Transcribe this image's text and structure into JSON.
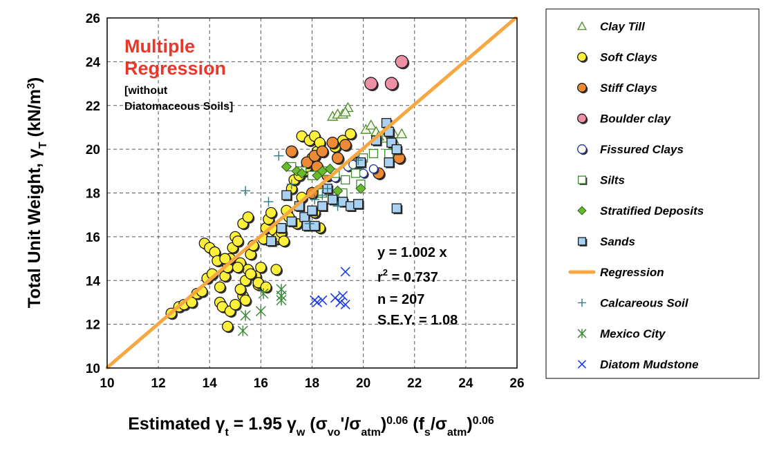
{
  "chart_data": {
    "type": "scatter",
    "title": "Multiple Regression",
    "subtitle_lines": [
      "[without",
      "Diatomaceous Soils]"
    ],
    "xlabel": {
      "parts": [
        {
          "t": "Estimated ",
          "s": ""
        },
        {
          "t": "γ",
          "s": ""
        },
        {
          "t": "t",
          "s": "sub"
        },
        {
          "t": " = 1.95 ",
          "s": ""
        },
        {
          "t": "γ",
          "s": ""
        },
        {
          "t": "w",
          "s": "sub"
        },
        {
          "t": " (",
          "s": ""
        },
        {
          "t": "σ",
          "s": ""
        },
        {
          "t": "vo",
          "s": "sub"
        },
        {
          "t": "'/",
          "s": ""
        },
        {
          "t": "σ",
          "s": ""
        },
        {
          "t": "atm",
          "s": "sub"
        },
        {
          "t": ")",
          "s": ""
        },
        {
          "t": "0.06",
          "s": "sup"
        },
        {
          "t": " (f",
          "s": ""
        },
        {
          "t": "s",
          "s": "sub"
        },
        {
          "t": "/",
          "s": ""
        },
        {
          "t": "σ",
          "s": ""
        },
        {
          "t": "atm",
          "s": "sub"
        },
        {
          "t": ")",
          "s": ""
        },
        {
          "t": "0.06",
          "s": "sup"
        }
      ]
    },
    "ylabel": {
      "parts": [
        {
          "t": "Total Unit Weight, ",
          "s": ""
        },
        {
          "t": "γ",
          "s": ""
        },
        {
          "t": "T",
          "s": "sub"
        },
        {
          "t": " (kN/m",
          "s": ""
        },
        {
          "t": "3",
          "s": "sup"
        },
        {
          "t": ")",
          "s": ""
        }
      ]
    },
    "xlim": [
      10,
      26
    ],
    "ylim": [
      10,
      26
    ],
    "xticks": [
      10,
      12,
      14,
      16,
      18,
      20,
      22,
      24,
      26
    ],
    "yticks": [
      10,
      12,
      14,
      16,
      18,
      20,
      22,
      24,
      26
    ],
    "grid": true,
    "legend_position": "right",
    "stats": {
      "equation": "y = 1.002 x",
      "r2_prefix": "r",
      "r2_sup": "2",
      "r2_suffix": " = 0.737",
      "n": "n = 207",
      "sey": "S.E.Y. = 1.08"
    },
    "regression": {
      "name": "Regression",
      "slope": 1.002,
      "color": "#f5a742"
    },
    "series": [
      {
        "name": "Clay Till",
        "marker": "triangle",
        "color": "#4e8a2a",
        "fill": "#f2f7e9",
        "points": [
          [
            18.8,
            21.5
          ],
          [
            19.0,
            21.6
          ],
          [
            19.2,
            21.6
          ],
          [
            19.4,
            21.9
          ],
          [
            19.3,
            21.7
          ],
          [
            20.1,
            20.9
          ],
          [
            20.3,
            21.1
          ],
          [
            20.5,
            20.8
          ],
          [
            20.8,
            20.5
          ],
          [
            21.0,
            20.9
          ],
          [
            21.2,
            20.7
          ],
          [
            21.5,
            20.7
          ],
          [
            20.6,
            20.6
          ],
          [
            21.3,
            20.2
          ]
        ]
      },
      {
        "name": "Soft Clays",
        "marker": "circle",
        "color": "#1a1a1a",
        "fill": "#fff13a",
        "points": [
          [
            12.5,
            12.5
          ],
          [
            12.8,
            12.8
          ],
          [
            13.0,
            12.9
          ],
          [
            13.3,
            13.0
          ],
          [
            13.5,
            13.4
          ],
          [
            13.7,
            13.5
          ],
          [
            13.9,
            14.1
          ],
          [
            14.1,
            14.3
          ],
          [
            13.8,
            15.7
          ],
          [
            14.0,
            15.5
          ],
          [
            14.2,
            15.3
          ],
          [
            14.3,
            14.9
          ],
          [
            14.4,
            13.0
          ],
          [
            14.5,
            12.8
          ],
          [
            14.6,
            14.2
          ],
          [
            14.7,
            14.6
          ],
          [
            14.8,
            15.0
          ],
          [
            14.9,
            15.5
          ],
          [
            15.0,
            16.0
          ],
          [
            15.1,
            15.8
          ],
          [
            15.2,
            14.8
          ],
          [
            15.3,
            13.3
          ],
          [
            15.4,
            13.1
          ],
          [
            15.5,
            14.5
          ],
          [
            15.6,
            15.2
          ],
          [
            15.7,
            15.6
          ],
          [
            15.8,
            14.2
          ],
          [
            15.9,
            13.8
          ],
          [
            16.0,
            14.6
          ],
          [
            16.1,
            15.9
          ],
          [
            16.2,
            16.4
          ],
          [
            16.3,
            16.8
          ],
          [
            16.4,
            17.1
          ],
          [
            16.5,
            16.3
          ],
          [
            16.6,
            15.9
          ],
          [
            16.7,
            16.0
          ],
          [
            14.7,
            11.9
          ],
          [
            14.8,
            12.6
          ],
          [
            15.0,
            12.9
          ],
          [
            15.2,
            13.6
          ],
          [
            15.4,
            14.0
          ],
          [
            15.6,
            14.3
          ],
          [
            15.9,
            13.9
          ],
          [
            16.2,
            13.7
          ],
          [
            16.6,
            14.5
          ],
          [
            16.8,
            16.2
          ],
          [
            16.9,
            15.8
          ],
          [
            17.0,
            17.2
          ],
          [
            17.1,
            16.9
          ],
          [
            17.2,
            18.2
          ],
          [
            17.3,
            18.6
          ],
          [
            17.5,
            18.8
          ],
          [
            17.7,
            19.0
          ],
          [
            17.8,
            19.2
          ],
          [
            18.0,
            19.6
          ],
          [
            18.2,
            19.9
          ],
          [
            17.6,
            20.6
          ],
          [
            17.9,
            20.4
          ],
          [
            18.1,
            20.6
          ],
          [
            18.3,
            20.3
          ],
          [
            17.4,
            16.6
          ],
          [
            17.6,
            17.8
          ],
          [
            18.1,
            17.1
          ],
          [
            18.3,
            16.4
          ],
          [
            19.2,
            20.4
          ],
          [
            19.5,
            20.7
          ],
          [
            18.9,
            20.1
          ],
          [
            15.3,
            16.6
          ],
          [
            15.5,
            16.9
          ],
          [
            14.6,
            15.0
          ],
          [
            14.4,
            13.7
          ],
          [
            15.1,
            14.6
          ]
        ]
      },
      {
        "name": "Stiff Clays",
        "marker": "circle",
        "color": "#1a1a1a",
        "fill": "#ec8a35",
        "r": 8,
        "points": [
          [
            17.8,
            19.4
          ],
          [
            18.1,
            19.7
          ],
          [
            18.4,
            19.9
          ],
          [
            18.8,
            20.3
          ],
          [
            19.3,
            20.2
          ],
          [
            18.2,
            19.2
          ],
          [
            18.6,
            18.8
          ],
          [
            18.3,
            18.1
          ],
          [
            18.0,
            18.0
          ],
          [
            19.8,
            19.4
          ],
          [
            20.6,
            18.9
          ],
          [
            21.4,
            19.6
          ],
          [
            17.2,
            19.9
          ],
          [
            19.0,
            19.6
          ]
        ]
      },
      {
        "name": "Boulder clay",
        "marker": "circle",
        "color": "#1a1a1a",
        "fill": "#ee8fa3",
        "r": 9,
        "points": [
          [
            20.3,
            23.0
          ],
          [
            21.1,
            23.0
          ],
          [
            21.5,
            24.0
          ]
        ]
      },
      {
        "name": "Fissured Clays",
        "marker": "circle",
        "color": "#1a2fa0",
        "fill": "#ffffff",
        "r": 6,
        "points": [
          [
            18.9,
            18.7
          ],
          [
            19.4,
            19.2
          ],
          [
            19.6,
            19.3
          ],
          [
            20.0,
            18.9
          ],
          [
            20.4,
            19.1
          ]
        ]
      },
      {
        "name": "Silts",
        "marker": "square",
        "color": "#3a8a2a",
        "fill": "#ffffff",
        "points": [
          [
            17.2,
            19.2
          ],
          [
            17.6,
            19.0
          ],
          [
            18.0,
            18.8
          ],
          [
            18.6,
            19.0
          ],
          [
            18.9,
            18.9
          ],
          [
            19.3,
            18.6
          ],
          [
            19.7,
            18.9
          ],
          [
            20.0,
            19.6
          ],
          [
            20.4,
            19.8
          ],
          [
            21.0,
            19.8
          ],
          [
            18.4,
            18.0
          ],
          [
            19.2,
            18.0
          ],
          [
            19.9,
            18.4
          ]
        ]
      },
      {
        "name": "Stratified Deposits",
        "marker": "diamond",
        "color": "#2a5e1a",
        "fill": "#6ab82e",
        "points": [
          [
            17.0,
            19.2
          ],
          [
            17.4,
            19.0
          ],
          [
            17.6,
            18.9
          ],
          [
            18.2,
            18.8
          ],
          [
            18.4,
            19.0
          ],
          [
            18.7,
            19.1
          ],
          [
            19.0,
            18.1
          ],
          [
            19.9,
            18.2
          ]
        ]
      },
      {
        "name": "Sands",
        "marker": "square",
        "color": "#1a1a1a",
        "fill": "#a9d1f2",
        "size": 13,
        "points": [
          [
            16.4,
            15.8
          ],
          [
            16.8,
            16.4
          ],
          [
            17.0,
            17.9
          ],
          [
            17.2,
            16.7
          ],
          [
            17.5,
            17.4
          ],
          [
            17.7,
            16.9
          ],
          [
            17.8,
            16.5
          ],
          [
            18.0,
            17.2
          ],
          [
            18.4,
            17.4
          ],
          [
            18.8,
            17.7
          ],
          [
            19.2,
            17.6
          ],
          [
            19.5,
            17.4
          ],
          [
            19.8,
            17.5
          ],
          [
            18.1,
            16.5
          ],
          [
            18.6,
            18.2
          ],
          [
            20.5,
            20.4
          ],
          [
            20.9,
            21.2
          ],
          [
            21.0,
            20.8
          ],
          [
            21.1,
            20.3
          ],
          [
            21.3,
            20.0
          ],
          [
            21.0,
            19.4
          ],
          [
            21.3,
            17.3
          ],
          [
            19.9,
            19.4
          ]
        ]
      },
      {
        "name": "Regression",
        "marker": "line",
        "color": "#f5a742"
      },
      {
        "name": "Calcareous Soil",
        "marker": "plus",
        "color": "#2a7a8c",
        "points": [
          [
            15.4,
            18.1
          ],
          [
            16.7,
            19.7
          ],
          [
            17.2,
            18.4
          ],
          [
            18.1,
            17.7
          ],
          [
            18.6,
            18.2
          ],
          [
            19.0,
            17.4
          ],
          [
            16.3,
            17.6
          ],
          [
            17.9,
            16.6
          ],
          [
            19.8,
            19.5
          ],
          [
            18.4,
            17.9
          ]
        ]
      },
      {
        "name": "Mexico City",
        "marker": "asterisk",
        "color": "#3a8a3a",
        "points": [
          [
            15.3,
            11.7
          ],
          [
            15.4,
            12.4
          ],
          [
            16.0,
            12.6
          ],
          [
            16.1,
            13.4
          ],
          [
            16.8,
            13.1
          ],
          [
            16.8,
            13.6
          ],
          [
            16.8,
            13.3
          ]
        ]
      },
      {
        "name": "Diatom Mudstone",
        "marker": "cross",
        "color": "#1a3ae6",
        "points": [
          [
            18.1,
            13.1
          ],
          [
            18.2,
            13.0
          ],
          [
            18.4,
            13.1
          ],
          [
            18.9,
            13.2
          ],
          [
            19.1,
            13.0
          ],
          [
            19.2,
            13.3
          ],
          [
            19.3,
            12.9
          ],
          [
            19.3,
            14.4
          ]
        ]
      }
    ]
  }
}
